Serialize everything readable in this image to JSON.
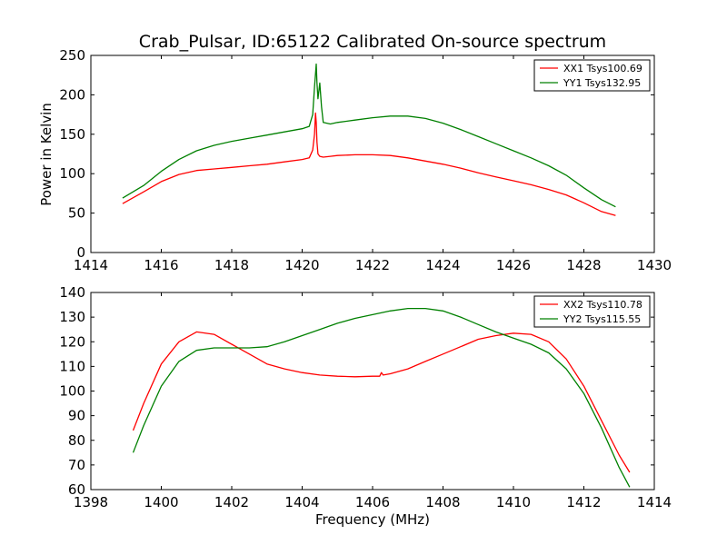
{
  "chart_data": [
    {
      "type": "line",
      "title": "Crab_Pulsar, ID:65122 Calibrated On-source spectrum",
      "xlabel": "",
      "ylabel": "Power in Kelvin",
      "xlim": [
        1414,
        1430
      ],
      "ylim": [
        0,
        250
      ],
      "xticks": [
        "1414",
        "1416",
        "1418",
        "1420",
        "1422",
        "1424",
        "1426",
        "1428",
        "1430"
      ],
      "yticks": [
        "0",
        "50",
        "100",
        "150",
        "200",
        "250"
      ],
      "grid": false,
      "legend_position": "top-right",
      "series": [
        {
          "name": "XX1 Tsys100.69",
          "color": "#ff0000",
          "x": [
            1414.9,
            1415.5,
            1416,
            1416.5,
            1417,
            1417.5,
            1418,
            1418.5,
            1419,
            1419.5,
            1420,
            1420.2,
            1420.3,
            1420.35,
            1420.38,
            1420.4,
            1420.42,
            1420.45,
            1420.5,
            1420.6,
            1420.8,
            1421,
            1421.5,
            1422,
            1422.5,
            1423,
            1423.5,
            1424,
            1424.5,
            1425,
            1425.5,
            1426,
            1426.5,
            1427,
            1427.5,
            1428,
            1428.5,
            1428.9
          ],
          "y": [
            62,
            77,
            90,
            99,
            104,
            106,
            108,
            110,
            112,
            115,
            118,
            120,
            130,
            150,
            177,
            165,
            140,
            125,
            122,
            121,
            122,
            123,
            124,
            124,
            123,
            120,
            116,
            112,
            107,
            101,
            96,
            91,
            86,
            80,
            73,
            63,
            52,
            47
          ]
        },
        {
          "name": "YY1 Tsys132.95",
          "color": "#008000",
          "x": [
            1414.9,
            1415.5,
            1416,
            1416.5,
            1417,
            1417.5,
            1418,
            1418.5,
            1419,
            1419.5,
            1420,
            1420.2,
            1420.3,
            1420.35,
            1420.4,
            1420.42,
            1420.45,
            1420.5,
            1420.55,
            1420.6,
            1420.8,
            1421,
            1421.5,
            1422,
            1422.5,
            1423,
            1423.5,
            1424,
            1424.5,
            1425,
            1425.5,
            1426,
            1426.5,
            1427,
            1427.5,
            1428,
            1428.5,
            1428.9
          ],
          "y": [
            69,
            85,
            103,
            118,
            129,
            136,
            141,
            145,
            149,
            153,
            157,
            160,
            175,
            210,
            239,
            215,
            195,
            215,
            185,
            165,
            163,
            165,
            168,
            171,
            173,
            173,
            170,
            164,
            156,
            147,
            138,
            129,
            120,
            110,
            98,
            82,
            67,
            58
          ]
        }
      ]
    },
    {
      "type": "line",
      "title": "",
      "xlabel": "Frequency (MHz)",
      "ylabel": "",
      "xlim": [
        1398,
        1414
      ],
      "ylim": [
        60,
        140
      ],
      "xticks": [
        "1398",
        "1400",
        "1402",
        "1404",
        "1406",
        "1408",
        "1410",
        "1412",
        "1414"
      ],
      "yticks": [
        "60",
        "70",
        "80",
        "90",
        "100",
        "110",
        "120",
        "130",
        "140"
      ],
      "grid": false,
      "legend_position": "top-right",
      "series": [
        {
          "name": "XX2 Tsys110.78",
          "color": "#ff0000",
          "x": [
            1399.2,
            1399.5,
            1400,
            1400.5,
            1401,
            1401.5,
            1402,
            1402.5,
            1403,
            1403.5,
            1404,
            1404.5,
            1405,
            1405.5,
            1406,
            1406.2,
            1406.25,
            1406.3,
            1406.5,
            1407,
            1407.5,
            1408,
            1408.5,
            1409,
            1409.5,
            1410,
            1410.5,
            1411,
            1411.5,
            1412,
            1412.5,
            1413,
            1413.3
          ],
          "y": [
            84,
            95,
            111,
            120,
            124,
            123,
            119,
            115,
            111,
            109,
            107.5,
            106.5,
            106,
            105.8,
            106,
            106,
            107.5,
            106.5,
            107,
            109,
            112,
            115,
            118,
            121,
            122.5,
            123.5,
            123,
            120,
            113,
            102,
            88,
            74,
            67
          ]
        },
        {
          "name": "YY2 Tsys115.55",
          "color": "#008000",
          "x": [
            1399.2,
            1399.5,
            1400,
            1400.5,
            1401,
            1401.5,
            1402,
            1402.5,
            1403,
            1403.5,
            1404,
            1404.5,
            1405,
            1405.5,
            1406,
            1406.5,
            1407,
            1407.5,
            1408,
            1408.5,
            1409,
            1409.5,
            1410,
            1410.5,
            1411,
            1411.5,
            1412,
            1412.5,
            1413,
            1413.3
          ],
          "y": [
            75,
            86,
            102,
            112,
            116.5,
            117.5,
            117.5,
            117.5,
            118,
            120,
            122.5,
            125,
            127.5,
            129.5,
            131,
            132.5,
            133.5,
            133.5,
            132.5,
            130,
            127,
            124,
            121.5,
            119,
            115.5,
            109,
            99,
            85,
            69,
            61
          ]
        }
      ]
    }
  ]
}
